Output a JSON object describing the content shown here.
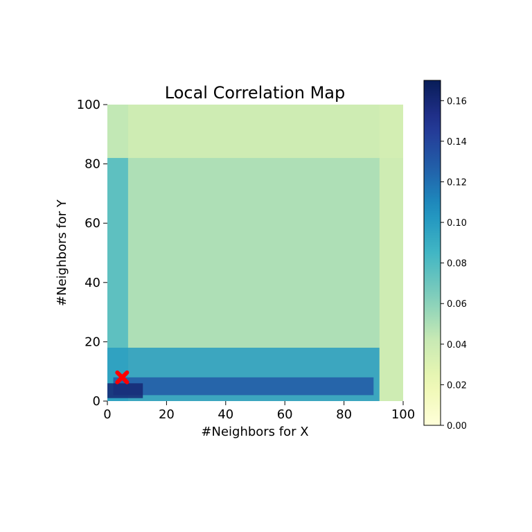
{
  "chart_data": {
    "type": "heatmap",
    "title": "Local Correlation Map",
    "xlabel": "#Neighbors for X",
    "ylabel": "#Neighbors for Y",
    "xlim": [
      0,
      100
    ],
    "ylim": [
      0,
      100
    ],
    "x_ticks": [
      "0",
      "20",
      "40",
      "60",
      "80",
      "100"
    ],
    "y_ticks": [
      "0",
      "20",
      "40",
      "60",
      "80",
      "100"
    ],
    "colormap": "YlGnBu",
    "colorbar": {
      "range": [
        0,
        0.17
      ],
      "ticks": [
        "0.00",
        "0.02",
        "0.04",
        "0.06",
        "0.08",
        "0.10",
        "0.12",
        "0.14",
        "0.16"
      ]
    },
    "optimal_marker": {
      "x": 5,
      "y": 8,
      "symbol": "X",
      "color": "#ff0000"
    },
    "regions": [
      {
        "x": [
          0,
          100
        ],
        "y": [
          0,
          100
        ],
        "value": 0.05
      },
      {
        "x": [
          0,
          7
        ],
        "y": [
          0,
          100
        ],
        "value": 0.08
      },
      {
        "x": [
          0,
          92
        ],
        "y": [
          0,
          18
        ],
        "value": 0.1
      },
      {
        "x": [
          2,
          90
        ],
        "y": [
          2,
          8
        ],
        "value": 0.13
      },
      {
        "x": [
          0,
          12
        ],
        "y": [
          1,
          6
        ],
        "value": 0.16
      },
      {
        "x": [
          92,
          100
        ],
        "y": [
          0,
          100
        ],
        "value": 0.035
      },
      {
        "x": [
          0,
          100
        ],
        "y": [
          82,
          100
        ],
        "value": 0.035
      }
    ]
  }
}
